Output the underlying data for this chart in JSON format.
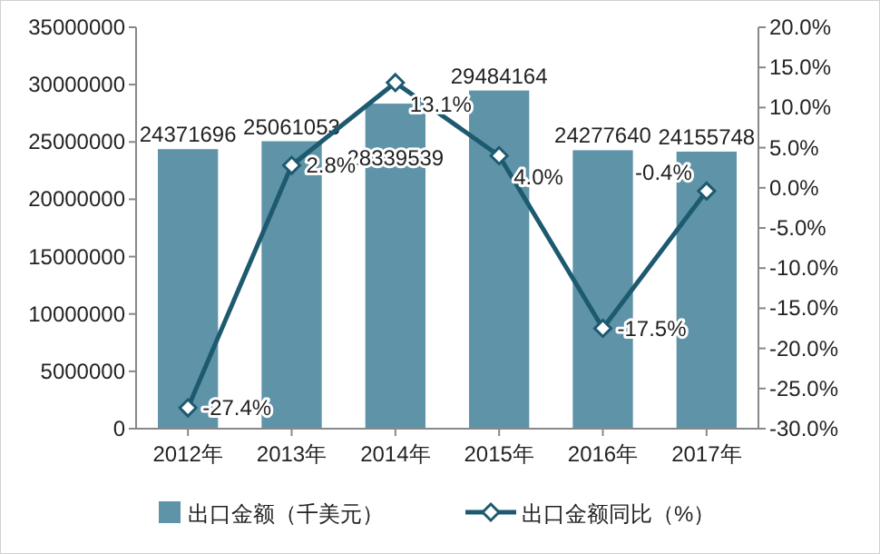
{
  "chart_data": {
    "type": "bar",
    "categories": [
      "2012年",
      "2013年",
      "2014年",
      "2015年",
      "2016年",
      "2017年"
    ],
    "series": [
      {
        "name": "出口金额（千美元）",
        "type": "bar",
        "color": "#5f93a8",
        "values": [
          24371696,
          25061053,
          28339539,
          29484164,
          24277640,
          24155748
        ],
        "value_labels": [
          "24371696",
          "25061053",
          "28339539",
          "29484164",
          "24277640",
          "24155748"
        ]
      },
      {
        "name": "出口金额同比（%）",
        "type": "line",
        "axis": "y2",
        "color": "#1d5a70",
        "marker": "diamond",
        "values": [
          -27.4,
          2.8,
          13.1,
          4.0,
          -17.5,
          -0.4
        ],
        "value_labels": [
          "-27.4%",
          "2.8%",
          "13.1%",
          "4.0%",
          "-17.5%",
          "-0.4%"
        ]
      }
    ],
    "ylim": [
      0,
      35000000
    ],
    "yticks": [
      0,
      5000000,
      10000000,
      15000000,
      20000000,
      25000000,
      30000000,
      35000000
    ],
    "y2lim": [
      -30,
      20
    ],
    "y2ticks": [
      {
        "value": -30,
        "label": "-30.0%"
      },
      {
        "value": -25,
        "label": "-25.0%"
      },
      {
        "value": -20,
        "label": "-20.0%"
      },
      {
        "value": -15,
        "label": "-15.0%"
      },
      {
        "value": -10,
        "label": "-10.0%"
      },
      {
        "value": -5,
        "label": "-5.0%"
      },
      {
        "value": 0,
        "label": "0.0%"
      },
      {
        "value": 5,
        "label": "5.0%"
      },
      {
        "value": 10,
        "label": "10.0%"
      },
      {
        "value": 15,
        "label": "15.0%"
      },
      {
        "value": 20,
        "label": "20.0%"
      }
    ],
    "legend": "bottom",
    "grid": false
  }
}
